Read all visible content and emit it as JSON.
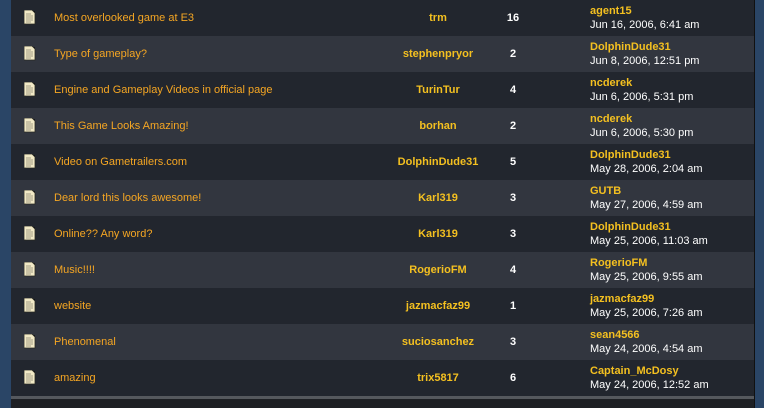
{
  "topics": [
    {
      "title": "Most overlooked game at E3",
      "author": "trm",
      "replies": "16",
      "last_user": "agent15",
      "last_date": "Jun 16, 2006, 6:41 am"
    },
    {
      "title": "Type of gameplay?",
      "author": "stephenpryor",
      "replies": "2",
      "last_user": "DolphinDude31",
      "last_date": "Jun 8, 2006, 12:51 pm"
    },
    {
      "title": "Engine and Gameplay Videos in official page",
      "author": "TurinTur",
      "replies": "4",
      "last_user": "ncderek",
      "last_date": "Jun 6, 2006, 5:31 pm"
    },
    {
      "title": "This Game Looks Amazing!",
      "author": "borhan",
      "replies": "2",
      "last_user": "ncderek",
      "last_date": "Jun 6, 2006, 5:30 pm"
    },
    {
      "title": "Video on Gametrailers.com",
      "author": "DolphinDude31",
      "replies": "5",
      "last_user": "DolphinDude31",
      "last_date": "May 28, 2006, 2:04 am"
    },
    {
      "title": "Dear lord this looks awesome!",
      "author": "Karl319",
      "replies": "3",
      "last_user": "GUTB",
      "last_date": "May 27, 2006, 4:59 am"
    },
    {
      "title": "Online?? Any word?",
      "author": "Karl319",
      "replies": "3",
      "last_user": "DolphinDude31",
      "last_date": "May 25, 2006, 11:03 am"
    },
    {
      "title": "Music!!!!",
      "author": "RogerioFM",
      "replies": "4",
      "last_user": "RogerioFM",
      "last_date": "May 25, 2006, 9:55 am"
    },
    {
      "title": "website",
      "author": "jazmacfaz99",
      "replies": "1",
      "last_user": "jazmacfaz99",
      "last_date": "May 25, 2006, 7:26 am"
    },
    {
      "title": "Phenomenal",
      "author": "suciosanchez",
      "replies": "3",
      "last_user": "sean4566",
      "last_date": "May 24, 2006, 4:54 am"
    },
    {
      "title": "amazing",
      "author": "trix5817",
      "replies": "6",
      "last_user": "Captain_McDosy",
      "last_date": "May 24, 2006, 12:52 am"
    }
  ],
  "colors": {
    "link": "#f5a623",
    "username": "#f4c020",
    "row_dark": "#22262e",
    "row_light": "#32363f",
    "frame": "#2a4566"
  },
  "icon": "topic-document-icon"
}
